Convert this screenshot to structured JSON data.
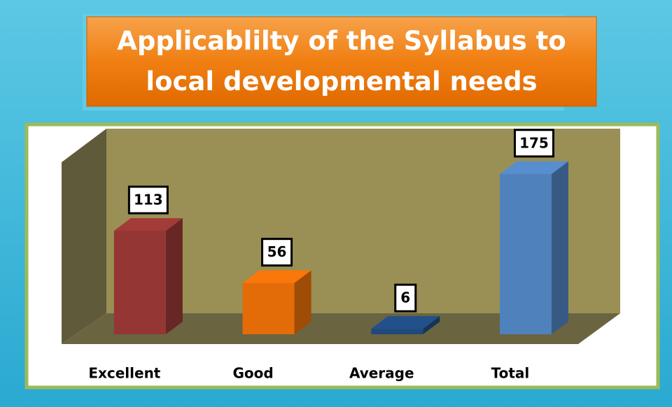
{
  "chart_data": {
    "type": "bar3d",
    "title": "Applicablilty of the Syllabus to local developmental needs",
    "categories": [
      "Excellent",
      "Good",
      "Average",
      "Total"
    ],
    "values": [
      113,
      56,
      6,
      175
    ],
    "colors": [
      "#943634",
      "#e36c09",
      "#1f497d",
      "#4f81bd"
    ],
    "ylim": [
      0,
      200
    ]
  }
}
